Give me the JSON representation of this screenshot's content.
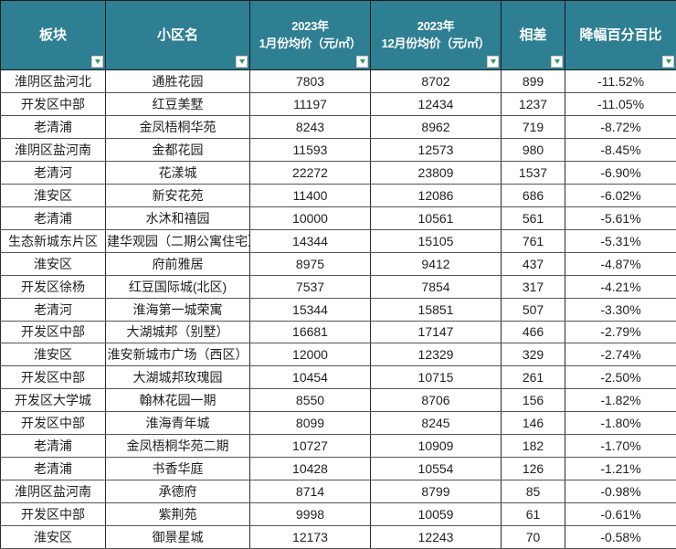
{
  "colors": {
    "header_bg": "#2F7F93",
    "header_text": "#FFFFFF",
    "grid_line": "#555555",
    "filter_button_bg": "#FFFFFF",
    "filter_arrow": "#2E9E57",
    "cell_text": "#1F1F1F",
    "row_bg": "#FFFFFF"
  },
  "table": {
    "columns": [
      {
        "key": "district",
        "label": "板块"
      },
      {
        "key": "community",
        "label": "小区名"
      },
      {
        "key": "jan-avg-price",
        "label": "2023年\n1月份均价（元/㎡）"
      },
      {
        "key": "dec-avg-price",
        "label": "2023年\n12月份均价（元/㎡）"
      },
      {
        "key": "difference",
        "label": "相差"
      },
      {
        "key": "decline-pct",
        "label": "降幅百分百比"
      }
    ],
    "rows": [
      [
        "淮阴区盐河北",
        "通胜花园",
        "7803",
        "8702",
        "899",
        "-11.52%"
      ],
      [
        "开发区中部",
        "红豆美墅",
        "11197",
        "12434",
        "1237",
        "-11.05%"
      ],
      [
        "老清浦",
        "金凤梧桐华苑",
        "8243",
        "8962",
        "719",
        "-8.72%"
      ],
      [
        "淮阴区盐河南",
        "金都花园",
        "11593",
        "12573",
        "980",
        "-8.45%"
      ],
      [
        "老清河",
        "花漾城",
        "22272",
        "23809",
        "1537",
        "-6.90%"
      ],
      [
        "淮安区",
        "新安花苑",
        "11400",
        "12086",
        "686",
        "-6.02%"
      ],
      [
        "老清浦",
        "水沐和禧园",
        "10000",
        "10561",
        "561",
        "-5.61%"
      ],
      [
        "生态新城东片区",
        "建华观园（二期公寓住宅）",
        "14344",
        "15105",
        "761",
        "-5.31%"
      ],
      [
        "淮安区",
        "府前雅居",
        "8975",
        "9412",
        "437",
        "-4.87%"
      ],
      [
        "开发区徐杨",
        "红豆国际城(北区)",
        "7537",
        "7854",
        "317",
        "-4.21%"
      ],
      [
        "老清河",
        "淮海第一城荣寓",
        "15344",
        "15851",
        "507",
        "-3.30%"
      ],
      [
        "开发区中部",
        "大湖城邦（别墅）",
        "16681",
        "17147",
        "466",
        "-2.79%"
      ],
      [
        "淮安区",
        "淮安新城市广场（西区）",
        "12000",
        "12329",
        "329",
        "-2.74%"
      ],
      [
        "开发区中部",
        "大湖城邦玫瑰园",
        "10454",
        "10715",
        "261",
        "-2.50%"
      ],
      [
        "开发区大学城",
        "翰林花园一期",
        "8550",
        "8706",
        "156",
        "-1.82%"
      ],
      [
        "开发区中部",
        "淮海青年城",
        "8099",
        "8245",
        "146",
        "-1.80%"
      ],
      [
        "老清浦",
        "金凤梧桐华苑二期",
        "10727",
        "10909",
        "182",
        "-1.70%"
      ],
      [
        "老清浦",
        "书香华庭",
        "10428",
        "10554",
        "126",
        "-1.21%"
      ],
      [
        "淮阴区盐河南",
        "承德府",
        "8714",
        "8799",
        "85",
        "-0.98%"
      ],
      [
        "开发区中部",
        "紫荆苑",
        "9998",
        "10059",
        "61",
        "-0.61%"
      ],
      [
        "淮安区",
        "御景星城",
        "12173",
        "12243",
        "70",
        "-0.58%"
      ]
    ]
  }
}
